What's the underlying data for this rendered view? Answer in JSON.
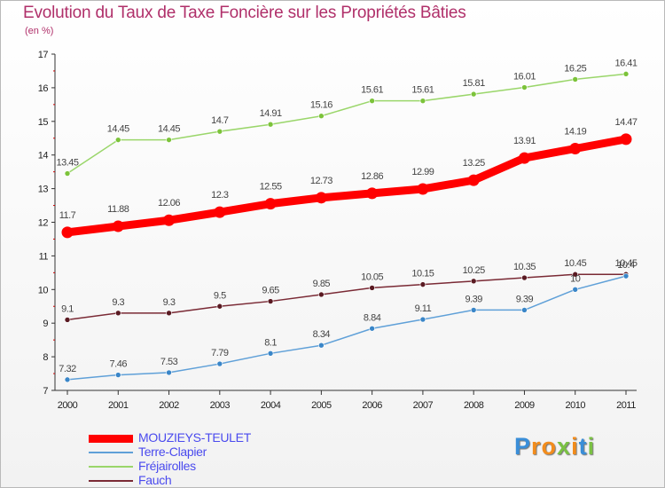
{
  "title": "Evolution du Taux de Taxe Foncière sur les Propriétés Bâties",
  "unit": "(en %)",
  "logo": {
    "letters": [
      "P",
      "r",
      "o",
      "x",
      "i",
      "t",
      "i"
    ],
    "colors": [
      "#3a8ed8",
      "#f28c1c",
      "#f28c1c",
      "#7ac143",
      "#f28c1c",
      "#3a8ed8",
      "#7ac143"
    ]
  },
  "chart_data": {
    "type": "line",
    "title": "Evolution du Taux de Taxe Foncière sur les Propriétés Bâties",
    "ylabel": "(en %)",
    "xlabel": "",
    "x": [
      "2000",
      "2001",
      "2002",
      "2003",
      "2004",
      "2005",
      "2006",
      "2007",
      "2008",
      "2009",
      "2010",
      "2011"
    ],
    "ylim": [
      7,
      17
    ],
    "yticks": [
      "7",
      "8",
      "9",
      "10",
      "11",
      "12",
      "13",
      "14",
      "15",
      "16",
      "17"
    ],
    "grid": false,
    "legend": "bottom-left",
    "series": [
      {
        "name": "MOUZIEYS-TEULET",
        "color": "#ff0000",
        "values": [
          11.7,
          11.88,
          12.06,
          12.3,
          12.55,
          12.73,
          12.86,
          12.99,
          13.25,
          13.91,
          14.19,
          14.47
        ],
        "labels": [
          "11.7",
          "11.88",
          "12.06",
          "12.3",
          "12.55",
          "12.73",
          "12.86",
          "12.99",
          "13.25",
          "13.91",
          "14.19",
          "14.47"
        ]
      },
      {
        "name": "Terre-Clapier",
        "color": "#5fa0d8",
        "values": [
          7.32,
          7.46,
          7.53,
          7.79,
          8.1,
          8.34,
          8.84,
          9.11,
          9.39,
          9.39,
          10.0,
          10.4
        ],
        "labels": [
          "7.32",
          "7.46",
          "7.53",
          "7.79",
          "8.1",
          "8.34",
          "8.84",
          "9.11",
          "9.39",
          "9.39",
          "10",
          "10.4"
        ]
      },
      {
        "name": "Fréjairolles",
        "color": "#9ad66a",
        "values": [
          13.45,
          14.45,
          14.45,
          14.7,
          14.91,
          15.16,
          15.61,
          15.61,
          15.81,
          16.01,
          16.25,
          16.41
        ],
        "labels": [
          "13.45",
          "14.45",
          "14.45",
          "14.7",
          "14.91",
          "15.16",
          "15.61",
          "15.61",
          "15.81",
          "16.01",
          "16.25",
          "16.41"
        ]
      },
      {
        "name": "Fauch",
        "color": "#7a2a35",
        "values": [
          9.1,
          9.3,
          9.3,
          9.5,
          9.65,
          9.85,
          10.05,
          10.15,
          10.25,
          10.35,
          10.45,
          10.45
        ],
        "labels": [
          "9.1",
          "9.3",
          "9.3",
          "9.5",
          "9.65",
          "9.85",
          "10.05",
          "10.15",
          "10.25",
          "10.35",
          "10.45",
          "10.45"
        ]
      }
    ]
  }
}
